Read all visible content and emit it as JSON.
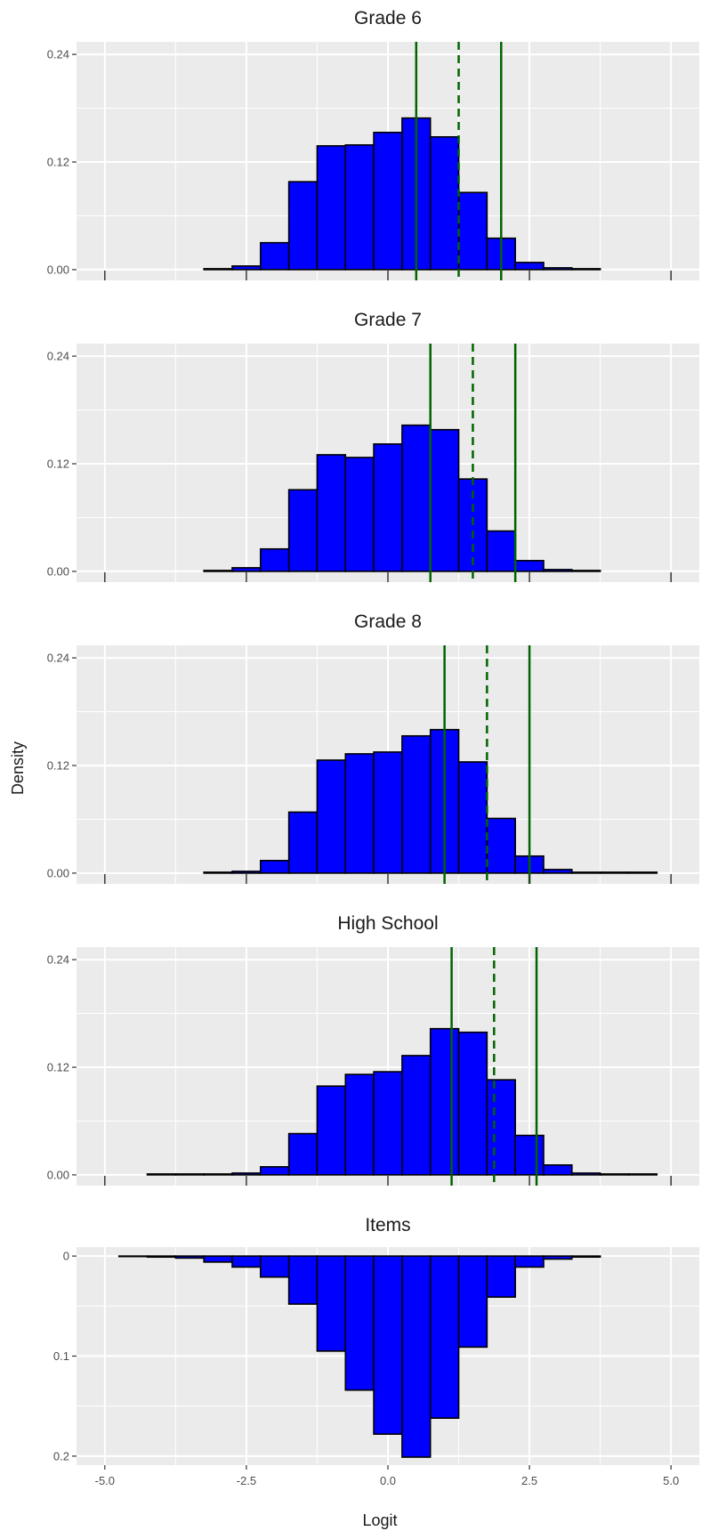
{
  "colors": {
    "panel_bg": "#ebebeb",
    "grid": "#ffffff",
    "bar_fill": "#0000ff",
    "bar_stroke": "#000000",
    "ref_line": "#006400"
  },
  "axes": {
    "ylabel": "Density",
    "xlabel": "Logit",
    "x_ticks": [
      "-5.0",
      "-2.5",
      "0.0",
      "2.5",
      "5.0"
    ]
  },
  "chart_data": [
    {
      "type": "bar",
      "title": "Grade 6",
      "bin_width": 0.5,
      "x": [
        -3.0,
        -2.5,
        -2.0,
        -1.5,
        -1.0,
        -0.5,
        0.0,
        0.5,
        1.0,
        1.5,
        2.0,
        2.5,
        3.0,
        3.5
      ],
      "values": [
        0.001,
        0.004,
        0.03,
        0.098,
        0.138,
        0.139,
        0.153,
        0.169,
        0.148,
        0.086,
        0.035,
        0.008,
        0.002,
        0.001
      ],
      "ylim": [
        -0.012,
        0.254
      ],
      "y_ticks": [
        "0.00",
        "0.12",
        "0.24"
      ],
      "xlim": [
        -5.5,
        5.5
      ],
      "vlines": {
        "solid": [
          0.5,
          2.0
        ],
        "dashed": [
          1.25
        ]
      }
    },
    {
      "type": "bar",
      "title": "Grade 7",
      "bin_width": 0.5,
      "x": [
        -3.0,
        -2.5,
        -2.0,
        -1.5,
        -1.0,
        -0.5,
        0.0,
        0.5,
        1.0,
        1.5,
        2.0,
        2.5,
        3.0,
        3.5
      ],
      "values": [
        0.001,
        0.004,
        0.025,
        0.091,
        0.13,
        0.127,
        0.142,
        0.163,
        0.158,
        0.103,
        0.045,
        0.012,
        0.002,
        0.001
      ],
      "ylim": [
        -0.012,
        0.254
      ],
      "y_ticks": [
        "0.00",
        "0.12",
        "0.24"
      ],
      "xlim": [
        -5.5,
        5.5
      ],
      "vlines": {
        "solid": [
          0.75,
          2.25
        ],
        "dashed": [
          1.5
        ]
      }
    },
    {
      "type": "bar",
      "title": "Grade 8",
      "bin_width": 0.5,
      "x": [
        -3.0,
        -2.5,
        -2.0,
        -1.5,
        -1.0,
        -0.5,
        0.0,
        0.5,
        1.0,
        1.5,
        2.0,
        2.5,
        3.0,
        3.5,
        4.0,
        4.5
      ],
      "values": [
        0.001,
        0.002,
        0.014,
        0.068,
        0.126,
        0.133,
        0.135,
        0.153,
        0.16,
        0.124,
        0.061,
        0.019,
        0.004,
        0.001,
        0.001,
        0.001
      ],
      "ylim": [
        -0.012,
        0.254
      ],
      "y_ticks": [
        "0.00",
        "0.12",
        "0.24"
      ],
      "xlim": [
        -5.5,
        5.5
      ],
      "vlines": {
        "solid": [
          1.0,
          2.5
        ],
        "dashed": [
          1.75
        ]
      }
    },
    {
      "type": "bar",
      "title": "High School",
      "bin_width": 0.5,
      "x": [
        -4.0,
        -3.5,
        -3.0,
        -2.5,
        -2.0,
        -1.5,
        -1.0,
        -0.5,
        0.0,
        0.5,
        1.0,
        1.5,
        2.0,
        2.5,
        3.0,
        3.5,
        4.0,
        4.5
      ],
      "values": [
        0.001,
        0.001,
        0.001,
        0.002,
        0.009,
        0.046,
        0.099,
        0.112,
        0.115,
        0.133,
        0.163,
        0.159,
        0.106,
        0.044,
        0.011,
        0.002,
        0.001,
        0.001
      ],
      "ylim": [
        -0.012,
        0.254
      ],
      "y_ticks": [
        "0.00",
        "0.12",
        "0.24"
      ],
      "xlim": [
        -5.5,
        5.5
      ],
      "vlines": {
        "solid": [
          1.125,
          2.625
        ],
        "dashed": [
          1.875
        ]
      }
    },
    {
      "type": "bar",
      "title": "Items",
      "reversed_y": true,
      "bin_width": 0.5,
      "x": [
        -4.5,
        -4.0,
        -3.5,
        -3.0,
        -2.5,
        -2.0,
        -1.5,
        -1.0,
        -0.5,
        0.0,
        0.5,
        1.0,
        1.5,
        2.0,
        2.5,
        3.0,
        3.5
      ],
      "values": [
        0.0005,
        0.001,
        0.002,
        0.006,
        0.011,
        0.021,
        0.048,
        0.095,
        0.134,
        0.178,
        0.201,
        0.162,
        0.091,
        0.041,
        0.011,
        0.003,
        0.001
      ],
      "ylim": [
        -0.009,
        0.209
      ],
      "y_ticks": [
        "0",
        "0.1",
        "0.2"
      ],
      "xlim": [
        -5.5,
        5.5
      ],
      "x_ticks": [
        "-5.0",
        "-2.5",
        "0.0",
        "2.5",
        "5.0"
      ]
    }
  ]
}
